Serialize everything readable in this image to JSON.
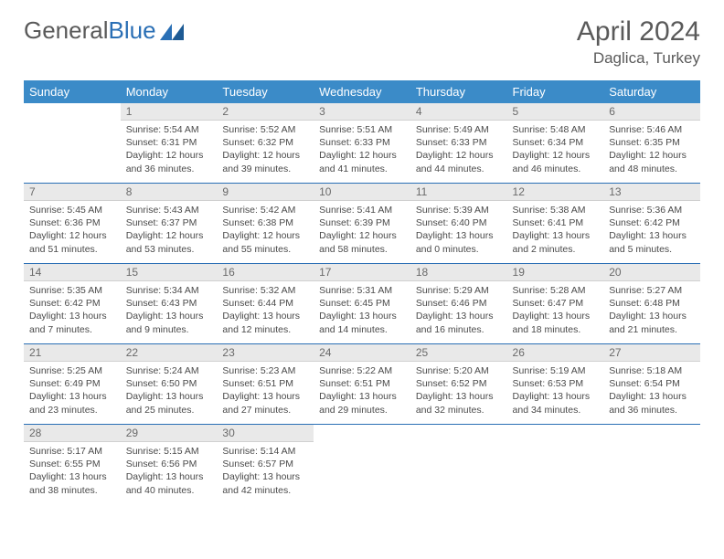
{
  "logo": {
    "text1": "General",
    "text2": "Blue"
  },
  "title": "April 2024",
  "subtitle": "Daglica, Turkey",
  "colors": {
    "header_bg": "#3b8bc8",
    "header_fg": "#ffffff",
    "daynum_bg": "#e9e9e9",
    "rule": "#2a6fb5",
    "text": "#4a4a4a",
    "title_color": "#5a5a5a"
  },
  "weekdays": [
    "Sunday",
    "Monday",
    "Tuesday",
    "Wednesday",
    "Thursday",
    "Friday",
    "Saturday"
  ],
  "weeks": [
    [
      null,
      {
        "n": "1",
        "sr": "Sunrise: 5:54 AM",
        "ss": "Sunset: 6:31 PM",
        "d1": "Daylight: 12 hours",
        "d2": "and 36 minutes."
      },
      {
        "n": "2",
        "sr": "Sunrise: 5:52 AM",
        "ss": "Sunset: 6:32 PM",
        "d1": "Daylight: 12 hours",
        "d2": "and 39 minutes."
      },
      {
        "n": "3",
        "sr": "Sunrise: 5:51 AM",
        "ss": "Sunset: 6:33 PM",
        "d1": "Daylight: 12 hours",
        "d2": "and 41 minutes."
      },
      {
        "n": "4",
        "sr": "Sunrise: 5:49 AM",
        "ss": "Sunset: 6:33 PM",
        "d1": "Daylight: 12 hours",
        "d2": "and 44 minutes."
      },
      {
        "n": "5",
        "sr": "Sunrise: 5:48 AM",
        "ss": "Sunset: 6:34 PM",
        "d1": "Daylight: 12 hours",
        "d2": "and 46 minutes."
      },
      {
        "n": "6",
        "sr": "Sunrise: 5:46 AM",
        "ss": "Sunset: 6:35 PM",
        "d1": "Daylight: 12 hours",
        "d2": "and 48 minutes."
      }
    ],
    [
      {
        "n": "7",
        "sr": "Sunrise: 5:45 AM",
        "ss": "Sunset: 6:36 PM",
        "d1": "Daylight: 12 hours",
        "d2": "and 51 minutes."
      },
      {
        "n": "8",
        "sr": "Sunrise: 5:43 AM",
        "ss": "Sunset: 6:37 PM",
        "d1": "Daylight: 12 hours",
        "d2": "and 53 minutes."
      },
      {
        "n": "9",
        "sr": "Sunrise: 5:42 AM",
        "ss": "Sunset: 6:38 PM",
        "d1": "Daylight: 12 hours",
        "d2": "and 55 minutes."
      },
      {
        "n": "10",
        "sr": "Sunrise: 5:41 AM",
        "ss": "Sunset: 6:39 PM",
        "d1": "Daylight: 12 hours",
        "d2": "and 58 minutes."
      },
      {
        "n": "11",
        "sr": "Sunrise: 5:39 AM",
        "ss": "Sunset: 6:40 PM",
        "d1": "Daylight: 13 hours",
        "d2": "and 0 minutes."
      },
      {
        "n": "12",
        "sr": "Sunrise: 5:38 AM",
        "ss": "Sunset: 6:41 PM",
        "d1": "Daylight: 13 hours",
        "d2": "and 2 minutes."
      },
      {
        "n": "13",
        "sr": "Sunrise: 5:36 AM",
        "ss": "Sunset: 6:42 PM",
        "d1": "Daylight: 13 hours",
        "d2": "and 5 minutes."
      }
    ],
    [
      {
        "n": "14",
        "sr": "Sunrise: 5:35 AM",
        "ss": "Sunset: 6:42 PM",
        "d1": "Daylight: 13 hours",
        "d2": "and 7 minutes."
      },
      {
        "n": "15",
        "sr": "Sunrise: 5:34 AM",
        "ss": "Sunset: 6:43 PM",
        "d1": "Daylight: 13 hours",
        "d2": "and 9 minutes."
      },
      {
        "n": "16",
        "sr": "Sunrise: 5:32 AM",
        "ss": "Sunset: 6:44 PM",
        "d1": "Daylight: 13 hours",
        "d2": "and 12 minutes."
      },
      {
        "n": "17",
        "sr": "Sunrise: 5:31 AM",
        "ss": "Sunset: 6:45 PM",
        "d1": "Daylight: 13 hours",
        "d2": "and 14 minutes."
      },
      {
        "n": "18",
        "sr": "Sunrise: 5:29 AM",
        "ss": "Sunset: 6:46 PM",
        "d1": "Daylight: 13 hours",
        "d2": "and 16 minutes."
      },
      {
        "n": "19",
        "sr": "Sunrise: 5:28 AM",
        "ss": "Sunset: 6:47 PM",
        "d1": "Daylight: 13 hours",
        "d2": "and 18 minutes."
      },
      {
        "n": "20",
        "sr": "Sunrise: 5:27 AM",
        "ss": "Sunset: 6:48 PM",
        "d1": "Daylight: 13 hours",
        "d2": "and 21 minutes."
      }
    ],
    [
      {
        "n": "21",
        "sr": "Sunrise: 5:25 AM",
        "ss": "Sunset: 6:49 PM",
        "d1": "Daylight: 13 hours",
        "d2": "and 23 minutes."
      },
      {
        "n": "22",
        "sr": "Sunrise: 5:24 AM",
        "ss": "Sunset: 6:50 PM",
        "d1": "Daylight: 13 hours",
        "d2": "and 25 minutes."
      },
      {
        "n": "23",
        "sr": "Sunrise: 5:23 AM",
        "ss": "Sunset: 6:51 PM",
        "d1": "Daylight: 13 hours",
        "d2": "and 27 minutes."
      },
      {
        "n": "24",
        "sr": "Sunrise: 5:22 AM",
        "ss": "Sunset: 6:51 PM",
        "d1": "Daylight: 13 hours",
        "d2": "and 29 minutes."
      },
      {
        "n": "25",
        "sr": "Sunrise: 5:20 AM",
        "ss": "Sunset: 6:52 PM",
        "d1": "Daylight: 13 hours",
        "d2": "and 32 minutes."
      },
      {
        "n": "26",
        "sr": "Sunrise: 5:19 AM",
        "ss": "Sunset: 6:53 PM",
        "d1": "Daylight: 13 hours",
        "d2": "and 34 minutes."
      },
      {
        "n": "27",
        "sr": "Sunrise: 5:18 AM",
        "ss": "Sunset: 6:54 PM",
        "d1": "Daylight: 13 hours",
        "d2": "and 36 minutes."
      }
    ],
    [
      {
        "n": "28",
        "sr": "Sunrise: 5:17 AM",
        "ss": "Sunset: 6:55 PM",
        "d1": "Daylight: 13 hours",
        "d2": "and 38 minutes."
      },
      {
        "n": "29",
        "sr": "Sunrise: 5:15 AM",
        "ss": "Sunset: 6:56 PM",
        "d1": "Daylight: 13 hours",
        "d2": "and 40 minutes."
      },
      {
        "n": "30",
        "sr": "Sunrise: 5:14 AM",
        "ss": "Sunset: 6:57 PM",
        "d1": "Daylight: 13 hours",
        "d2": "and 42 minutes."
      },
      null,
      null,
      null,
      null
    ]
  ]
}
